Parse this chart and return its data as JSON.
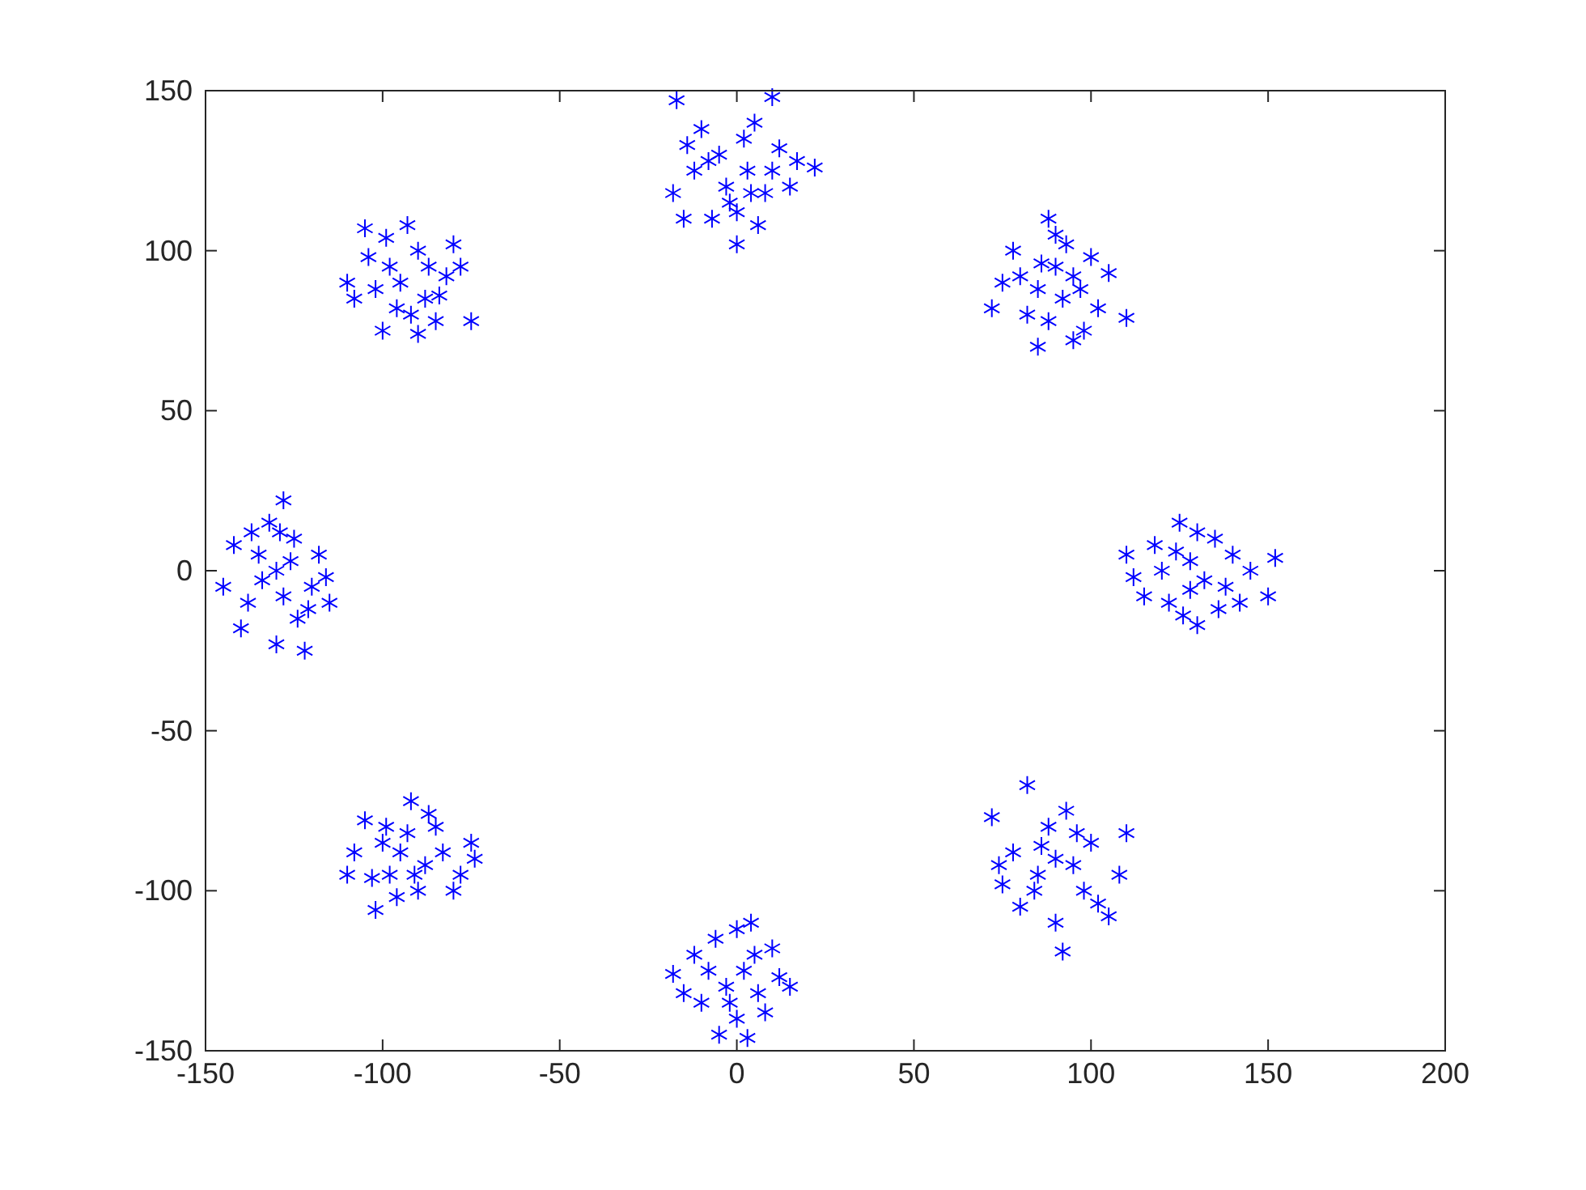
{
  "chart_data": {
    "type": "scatter",
    "marker": "cross",
    "grid": false,
    "xlim": [
      -150,
      200
    ],
    "ylim": [
      -150,
      150
    ],
    "xticks": [
      -150,
      -100,
      -50,
      0,
      50,
      100,
      150,
      200
    ],
    "yticks": [
      -150,
      -100,
      -50,
      0,
      50,
      100,
      150
    ],
    "series": [
      {
        "color": "#0000ff",
        "x": [
          -17,
          10,
          0,
          22,
          -18,
          -10,
          5,
          -5,
          3,
          -3,
          8,
          -12,
          12,
          0,
          -7,
          6,
          15,
          -14,
          2,
          -2,
          10,
          -8,
          4,
          17,
          -15,
          72,
          88,
          110,
          105,
          85,
          95,
          78,
          90,
          92,
          85,
          100,
          80,
          97,
          88,
          93,
          75,
          102,
          86,
          95,
          82,
          90,
          98,
          152,
          150,
          110,
          115,
          125,
          130,
          140,
          120,
          128,
          132,
          135,
          122,
          138,
          118,
          126,
          145,
          130,
          124,
          136,
          112,
          128,
          142,
          82,
          92,
          72,
          110,
          105,
          75,
          88,
          95,
          85,
          100,
          80,
          93,
          98,
          78,
          90,
          108,
          86,
          96,
          84,
          102,
          90,
          74,
          -18,
          12,
          0,
          -5,
          3,
          -10,
          5,
          -3,
          8,
          -12,
          10,
          -15,
          2,
          -6,
          6,
          0,
          15,
          -8,
          4,
          -2,
          -102,
          -92,
          -75,
          -110,
          -105,
          -80,
          -95,
          -88,
          -98,
          -85,
          -90,
          -100,
          -78,
          -93,
          -108,
          -83,
          -96,
          -87,
          -103,
          -74,
          -91,
          -99,
          -128,
          -122,
          -130,
          -145,
          -140,
          -115,
          -118,
          -125,
          -130,
          -135,
          -128,
          -120,
          -138,
          -132,
          -124,
          -142,
          -126,
          -116,
          -134,
          -129,
          -121,
          -137,
          -93,
          -108,
          -75,
          -78,
          -105,
          -100,
          -90,
          -95,
          -88,
          -82,
          -98,
          -85,
          -102,
          -92,
          -80,
          -110,
          -87,
          -96,
          -90,
          -104,
          -84,
          -99
        ],
        "values": [
          147,
          148,
          102,
          126,
          118,
          138,
          140,
          130,
          125,
          120,
          118,
          125,
          132,
          112,
          110,
          108,
          120,
          133,
          135,
          115,
          125,
          128,
          118,
          128,
          110,
          82,
          110,
          79,
          93,
          70,
          72,
          100,
          95,
          85,
          88,
          98,
          92,
          88,
          78,
          102,
          90,
          82,
          96,
          92,
          80,
          105,
          75,
          4,
          -8,
          5,
          -8,
          15,
          -17,
          5,
          0,
          3,
          -3,
          10,
          -10,
          -5,
          8,
          -14,
          0,
          12,
          6,
          -12,
          -2,
          -6,
          -10,
          -67,
          -119,
          -77,
          -82,
          -108,
          -98,
          -80,
          -92,
          -95,
          -85,
          -105,
          -75,
          -100,
          -88,
          -110,
          -95,
          -86,
          -82,
          -100,
          -104,
          -90,
          -92,
          -126,
          -127,
          -112,
          -145,
          -146,
          -135,
          -120,
          -130,
          -138,
          -120,
          -118,
          -132,
          -125,
          -115,
          -132,
          -140,
          -130,
          -125,
          -110,
          -135,
          -106,
          -72,
          -85,
          -95,
          -78,
          -100,
          -88,
          -92,
          -95,
          -80,
          -100,
          -85,
          -95,
          -82,
          -88,
          -88,
          -102,
          -76,
          -96,
          -90,
          -95,
          -80,
          22,
          -25,
          -23,
          -5,
          -18,
          -10,
          5,
          10,
          0,
          5,
          -8,
          -5,
          -10,
          15,
          -15,
          8,
          3,
          -2,
          -3,
          12,
          -12,
          12,
          108,
          85,
          78,
          95,
          107,
          75,
          100,
          90,
          85,
          92,
          95,
          78,
          88,
          80,
          102,
          90,
          95,
          82,
          74,
          98,
          86,
          104
        ]
      }
    ]
  }
}
